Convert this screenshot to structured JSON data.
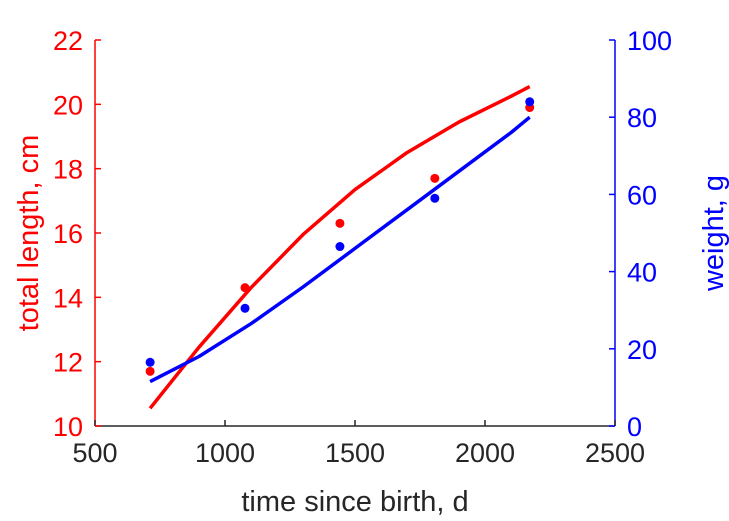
{
  "chart_data": {
    "type": "scatter",
    "xlabel": "time since birth, d",
    "ylabel_left": "total length, cm",
    "ylabel_right": "weight, g",
    "xlim": [
      500,
      2500
    ],
    "ylim_left": [
      10,
      22
    ],
    "ylim_right": [
      0,
      100
    ],
    "x_ticks": [
      500,
      1000,
      1500,
      2000,
      2500
    ],
    "y_left_ticks": [
      10,
      12,
      14,
      16,
      18,
      20,
      22
    ],
    "y_right_ticks": [
      0,
      20,
      40,
      60,
      80,
      100
    ],
    "grid": false,
    "colors": {
      "left": "#ff0000",
      "right": "#0000ff",
      "axis": "#262626"
    },
    "series": [
      {
        "axis": "left",
        "color": "#ff0000",
        "points": {
          "x": [
            712,
            1077,
            1442,
            1807,
            2172
          ],
          "y": [
            11.7,
            14.3,
            16.3,
            17.7,
            19.9
          ]
        },
        "fit": {
          "x": [
            712,
            900,
            1100,
            1300,
            1500,
            1700,
            1900,
            2100,
            2172
          ],
          "y": [
            10.55,
            12.45,
            14.3,
            15.95,
            17.35,
            18.5,
            19.45,
            20.25,
            20.55
          ]
        }
      },
      {
        "axis": "right",
        "color": "#0000ff",
        "points": {
          "x": [
            712,
            1077,
            1442,
            1807,
            2172
          ],
          "y": [
            16.5,
            30.5,
            46.5,
            59,
            84
          ]
        },
        "fit": {
          "x": [
            712,
            900,
            1100,
            1300,
            1500,
            1700,
            1900,
            2100,
            2172
          ],
          "y": [
            11.5,
            18,
            26.5,
            36,
            46,
            56,
            66,
            76,
            80
          ]
        }
      }
    ]
  }
}
